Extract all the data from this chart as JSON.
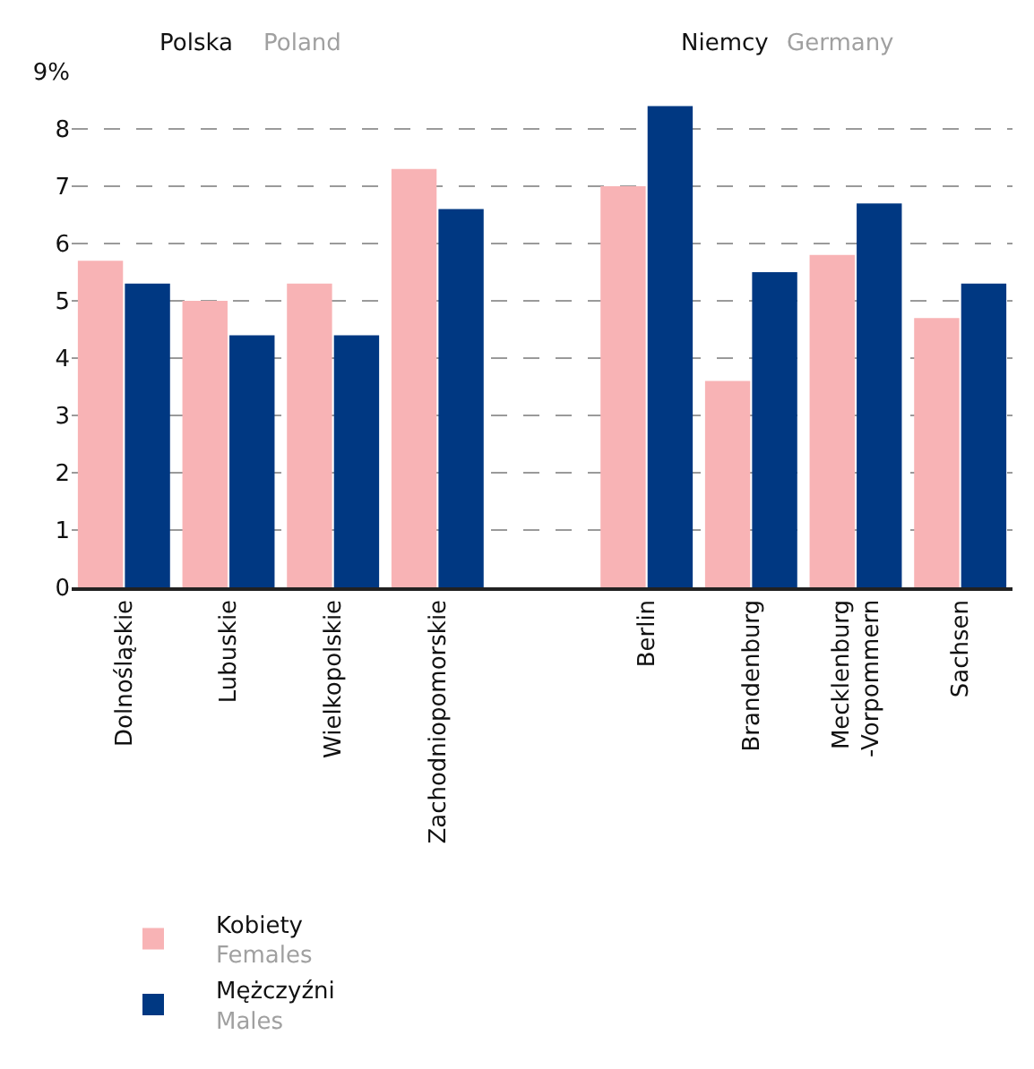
{
  "chart_data": {
    "type": "bar",
    "categories": [
      "Dolnośląskie",
      "Lubuskie",
      "Wielkopolskie",
      "Zachodniopomorskie",
      null,
      "Berlin",
      "Brandenburg",
      "Mecklenburg\n-Vorpommern",
      "Sachsen"
    ],
    "series": [
      {
        "name": "Kobiety\nFemales",
        "color": "#f8b3b5",
        "values": [
          5.7,
          5.0,
          5.3,
          7.3,
          null,
          7.0,
          3.6,
          5.8,
          4.7
        ]
      },
      {
        "name": "Mężczyźni\nMales",
        "color": "#003882",
        "values": [
          5.3,
          4.4,
          4.4,
          6.6,
          null,
          8.4,
          5.5,
          6.7,
          5.3
        ]
      }
    ],
    "ylim": [
      0,
      9
    ],
    "yticks": [
      0,
      1,
      2,
      3,
      4,
      5,
      6,
      7,
      8,
      {
        "value": 9,
        "label": "9%"
      }
    ],
    "grid": "y",
    "legend": "bottom",
    "annotations": [
      "Polska",
      "Poland",
      "Niemcy",
      "Germany"
    ]
  }
}
